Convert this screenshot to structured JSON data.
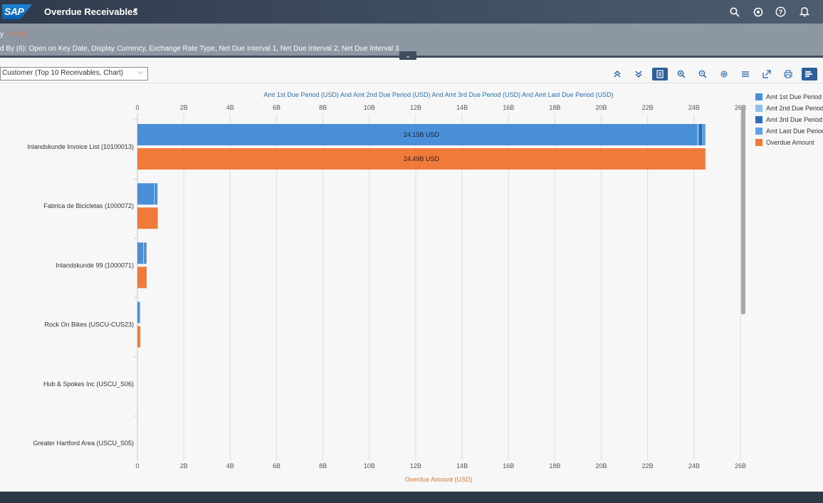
{
  "shell": {
    "logo_text": "SAP",
    "title": "Overdue Receivables",
    "icons": [
      "search-icon",
      "copilot-icon",
      "help-icon",
      "notifications-icon"
    ]
  },
  "header": {
    "kpi_prefix": "y",
    "kpi_value": "97.76%",
    "grouped_by": "d By (6): Open on Key Date, Display Currency, Exchange Rate Type, Net Due Interval 1, Net Due Interval 2, Net Due Interval 3"
  },
  "toolbar": {
    "view_selector": "Customer (Top 10 Receivables, Chart)",
    "icons": [
      "collapse-all-icon",
      "expand-all-icon",
      "chart-table-toggle-icon",
      "zoom-in-icon",
      "zoom-out-icon",
      "settings-icon",
      "legend-icon",
      "fullscreen-icon",
      "print-icon",
      "bar-chart-icon"
    ]
  },
  "chart_data": {
    "type": "bar",
    "orientation": "horizontal",
    "top_axis_title": "Amt 1st Due Period (USD) And Amt 2nd Due Period (USD) And Amt 3rd Due Period (USD) And Amt Last Due Period (USD)",
    "bottom_axis_title": "Overdue Amount (USD)",
    "ticks": [
      "0",
      "2B",
      "4B",
      "6B",
      "8B",
      "10B",
      "12B",
      "14B",
      "16B",
      "18B",
      "20B",
      "22B",
      "24B",
      "26B"
    ],
    "xlim": [
      0,
      26
    ],
    "unit": "B USD",
    "categories": [
      "Inlandskunde Invoice List (10100013)",
      "Fabrica de Bicicletas (1000072)",
      "Inlandskunde 99 (1000071)",
      "Rock On Bikes (USCU-CUS23)",
      "Hub & Spokes Inc (USCU_S06)",
      "Greater Hartford Area (USCU_S05)"
    ],
    "stacked_series": [
      {
        "name": "Amt 1st Due Period",
        "color": "#4a90d9",
        "values": [
          24.15,
          0.72,
          0.25,
          0.1,
          0,
          0
        ]
      },
      {
        "name": "Amt 2nd Due Period",
        "color": "#8ec0ee",
        "values": [
          0.05,
          0.05,
          0.05,
          0.02,
          0,
          0
        ]
      },
      {
        "name": "Amt 3rd Due Period",
        "color": "#2a6fb5",
        "values": [
          0.15,
          0.05,
          0.04,
          0,
          0,
          0
        ]
      },
      {
        "name": "Amt Last Due Period",
        "color": "#5fa0e5",
        "values": [
          0.14,
          0.05,
          0.06,
          0,
          0,
          0
        ]
      }
    ],
    "overdue_series": {
      "name": "Overdue Amount",
      "color": "#f07a3a",
      "values": [
        24.49,
        0.88,
        0.4,
        0.12,
        0,
        0
      ]
    },
    "data_labels": {
      "stacked": "24.15B USD",
      "overdue": "24.49B USD"
    },
    "legend_position": "right",
    "grid": true
  }
}
